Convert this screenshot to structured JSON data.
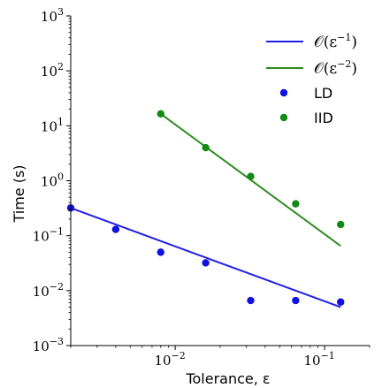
{
  "chart_data": {
    "type": "scatter",
    "xlabel": "Tolerance, ε",
    "ylabel": "Time (s)",
    "xscale": "log",
    "yscale": "log",
    "xlim": [
      0.002,
      0.2
    ],
    "ylim": [
      0.001,
      1000
    ],
    "x_ticks": [
      {
        "value": 0.01,
        "base": "10",
        "exp": "−2"
      },
      {
        "value": 0.1,
        "base": "10",
        "exp": "−1"
      }
    ],
    "y_ticks": [
      {
        "value": 0.001,
        "base": "10",
        "exp": "−3"
      },
      {
        "value": 0.01,
        "base": "10",
        "exp": "−2"
      },
      {
        "value": 0.1,
        "base": "10",
        "exp": "−1"
      },
      {
        "value": 1,
        "base": "10",
        "exp": "0"
      },
      {
        "value": 10,
        "base": "10",
        "exp": "1"
      },
      {
        "value": 100,
        "base": "10",
        "exp": "2"
      },
      {
        "value": 1000,
        "base": "10",
        "exp": "3"
      }
    ],
    "legend_position": "top-right",
    "grid": false,
    "series": [
      {
        "name": "𝒪(ε⁻¹)",
        "label_base": "𝒪(ε",
        "label_exp": "−1",
        "label_close": ")",
        "kind": "line",
        "color": "#1f1fe6",
        "x": [
          0.002,
          0.128
        ],
        "y": [
          0.32,
          0.005
        ]
      },
      {
        "name": "𝒪(ε⁻²)",
        "label_base": "𝒪(ε",
        "label_exp": "−2",
        "label_close": ")",
        "kind": "line",
        "color": "#2e8b22",
        "x": [
          0.008,
          0.128
        ],
        "y": [
          16.5,
          0.065
        ]
      },
      {
        "name": "LD",
        "kind": "scatter",
        "color": "#1010e0",
        "x": [
          0.002,
          0.004,
          0.008,
          0.016,
          0.032,
          0.064,
          0.128
        ],
        "y": [
          0.32,
          0.13,
          0.05,
          0.032,
          0.0066,
          0.0066,
          0.0062
        ]
      },
      {
        "name": "IID",
        "kind": "scatter",
        "color": "#138a13",
        "x": [
          0.008,
          0.016,
          0.032,
          0.064,
          0.128
        ],
        "y": [
          16.5,
          4.0,
          1.2,
          0.38,
          0.16
        ]
      }
    ]
  }
}
